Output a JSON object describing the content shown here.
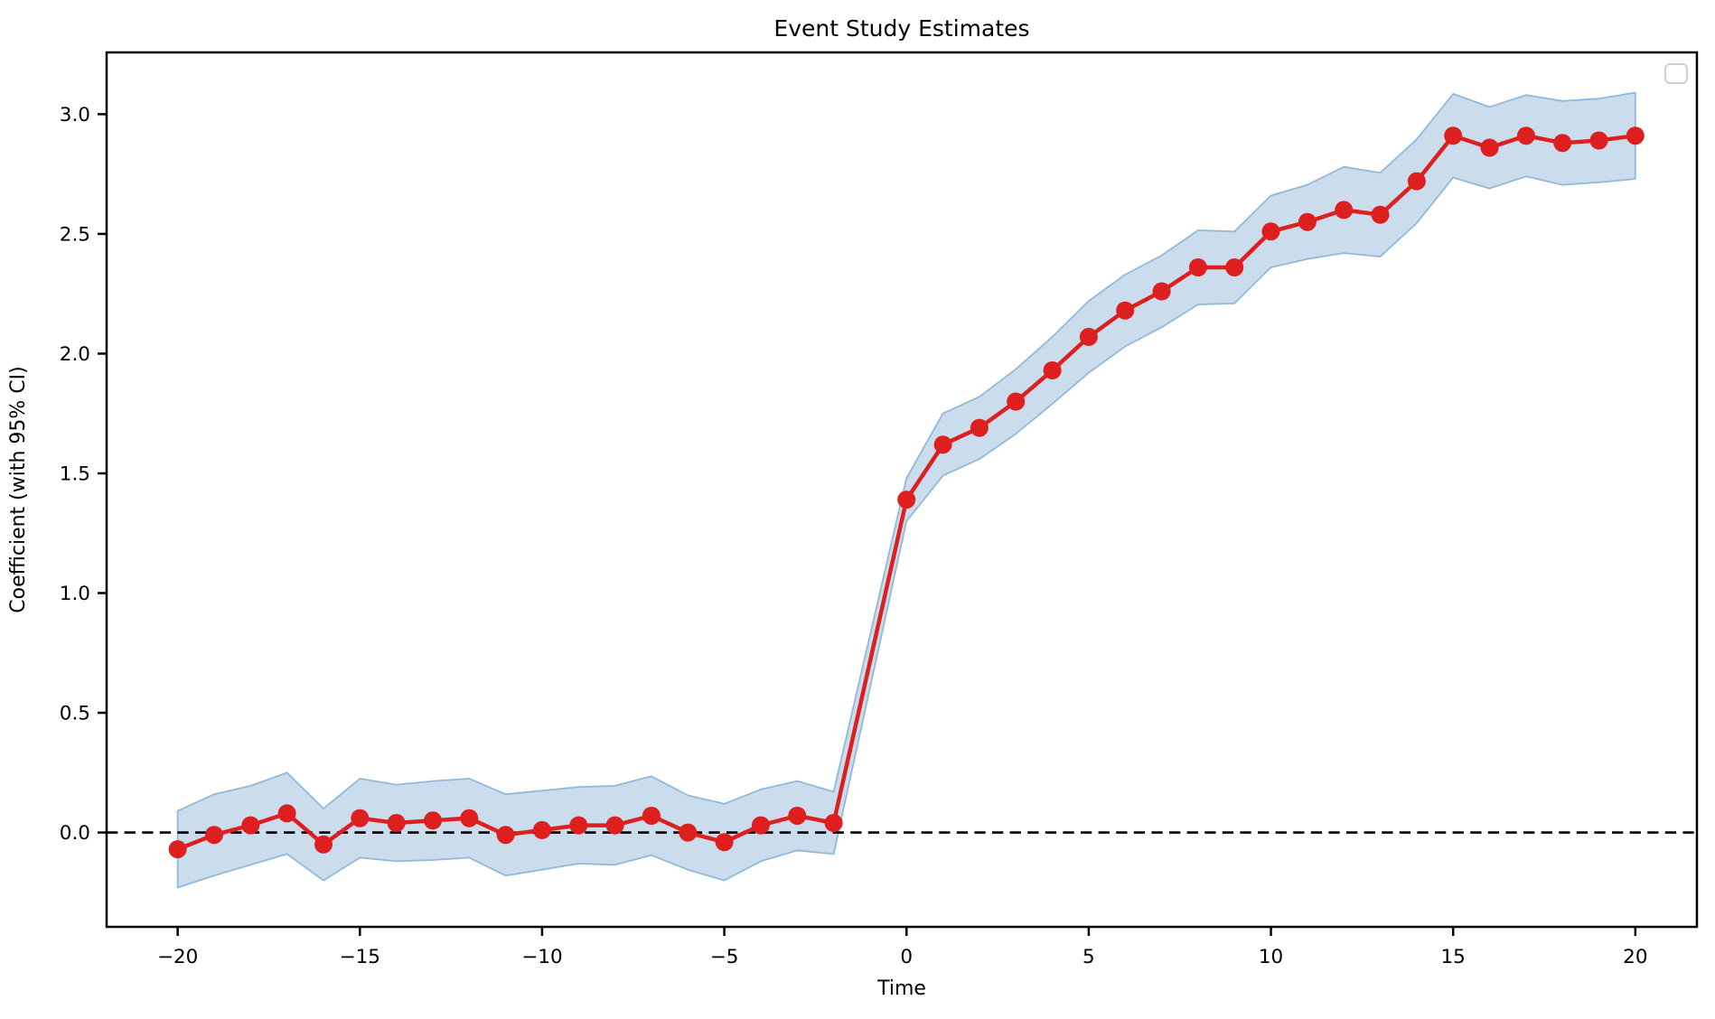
{
  "figure": {
    "title": "Event Study Estimates",
    "background": "#ffffff"
  },
  "legend": {
    "visible": true,
    "entries": [],
    "position": "upper right",
    "border_color": "#cfcfcf",
    "fill_color": "#ffffff"
  },
  "colors": {
    "line": "#dd1f1f",
    "marker": "#dd1f1f",
    "ci_fill": "#cbdcec",
    "ci_edge": "#93b9d9",
    "zero_line": "#000000",
    "spine": "#000000",
    "text": "#000000"
  },
  "chart_data": {
    "type": "line",
    "title": "Event Study Estimates",
    "xlabel": "Time",
    "ylabel": "Coefficient (with 95% CI)",
    "grid": false,
    "legend_position": "upper right (empty box)",
    "xlim": [
      -21.95,
      21.69
    ],
    "ylim": [
      -0.394,
      3.258
    ],
    "xticks": [
      -20,
      -15,
      -10,
      -5,
      0,
      5,
      10,
      15,
      20
    ],
    "xtick_labels": [
      "−20",
      "−15",
      "−10",
      "−5",
      "0",
      "5",
      "10",
      "15",
      "20"
    ],
    "yticks": [
      0.0,
      0.5,
      1.0,
      1.5,
      2.0,
      2.5,
      3.0
    ],
    "ytick_labels": [
      "0.0",
      "0.5",
      "1.0",
      "1.5",
      "2.0",
      "2.5",
      "3.0"
    ],
    "reference_line_y": 0,
    "x": [
      -20,
      -19,
      -18,
      -17,
      -16,
      -15,
      -14,
      -13,
      -12,
      -11,
      -10,
      -9,
      -8,
      -7,
      -6,
      -5,
      -4,
      -3,
      -2,
      0,
      1,
      2,
      3,
      4,
      5,
      6,
      7,
      8,
      9,
      10,
      11,
      12,
      13,
      14,
      15,
      16,
      17,
      18,
      19,
      20
    ],
    "series": [
      {
        "name": "coefficient",
        "values": [
          -0.07,
          -0.01,
          0.03,
          0.08,
          -0.05,
          0.06,
          0.04,
          0.05,
          0.06,
          -0.01,
          0.01,
          0.03,
          0.03,
          0.07,
          0.0,
          -0.04,
          0.03,
          0.07,
          0.04,
          1.39,
          1.62,
          1.69,
          1.8,
          1.93,
          2.07,
          2.18,
          2.26,
          2.36,
          2.36,
          2.51,
          2.55,
          2.6,
          2.58,
          2.72,
          2.91,
          2.86,
          2.91,
          2.88,
          2.89,
          2.91
        ]
      }
    ],
    "ci_lower": [
      -0.23,
      -0.18,
      -0.135,
      -0.09,
      -0.2,
      -0.105,
      -0.12,
      -0.115,
      -0.105,
      -0.18,
      -0.155,
      -0.13,
      -0.135,
      -0.095,
      -0.155,
      -0.2,
      -0.12,
      -0.075,
      -0.09,
      1.3,
      1.49,
      1.56,
      1.665,
      1.79,
      1.92,
      2.03,
      2.11,
      2.205,
      2.21,
      2.36,
      2.395,
      2.42,
      2.405,
      2.545,
      2.735,
      2.69,
      2.74,
      2.705,
      2.715,
      2.73
    ],
    "ci_upper": [
      0.09,
      0.16,
      0.195,
      0.25,
      0.1,
      0.225,
      0.2,
      0.215,
      0.225,
      0.16,
      0.175,
      0.19,
      0.195,
      0.235,
      0.155,
      0.12,
      0.18,
      0.215,
      0.17,
      1.48,
      1.75,
      1.82,
      1.935,
      2.07,
      2.22,
      2.33,
      2.41,
      2.515,
      2.51,
      2.66,
      2.705,
      2.78,
      2.755,
      2.895,
      3.085,
      3.03,
      3.08,
      3.055,
      3.065,
      3.09
    ]
  }
}
